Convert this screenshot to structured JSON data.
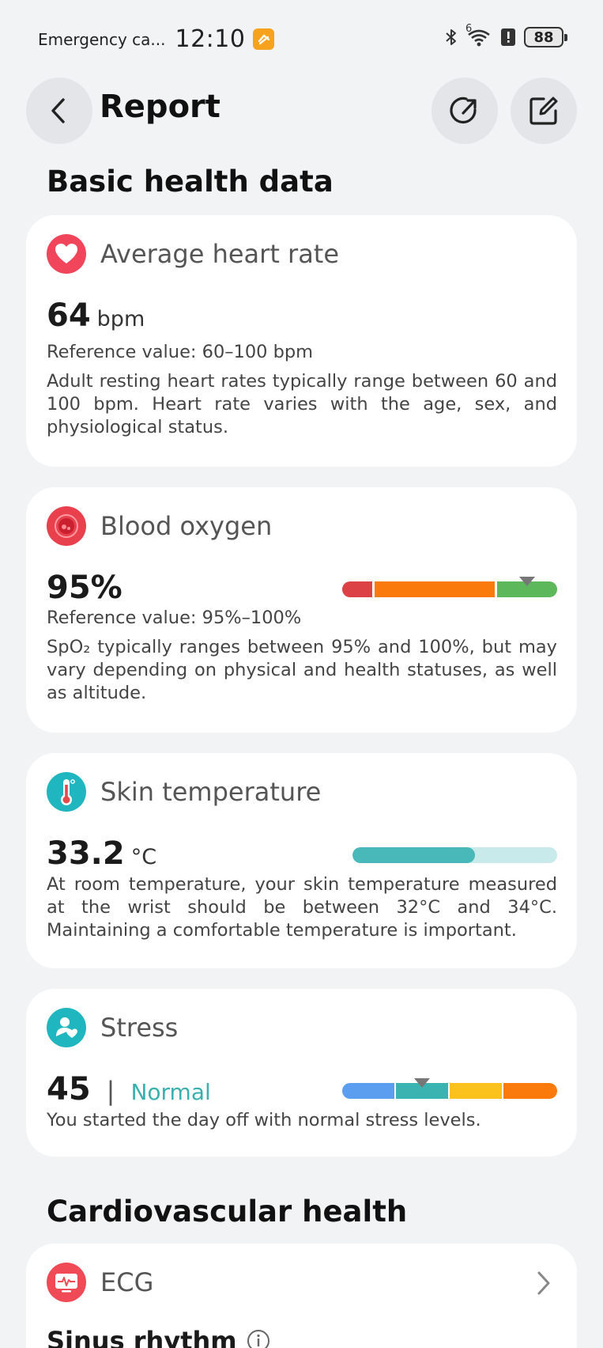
{
  "status_bar": {
    "carrier": "Emergency ca...",
    "time": "12:10",
    "network_label": "6",
    "battery": "88"
  },
  "header": {
    "title": "Report"
  },
  "sections": {
    "basic": "Basic health data",
    "cardio": "Cardiovascular health"
  },
  "heart_rate": {
    "title": "Average heart rate",
    "value": "64",
    "unit": "bpm",
    "reference": "Reference value: 60–100 bpm",
    "description": "Adult resting heart rates typically range between 60 and 100 bpm. Heart rate varies with the age, sex, and physiological status."
  },
  "blood_oxygen": {
    "title": "Blood oxygen",
    "value": "95%",
    "reference": "Reference value: 95%–100%",
    "description": "SpO₂ typically ranges between 95% and 100%, but may vary depending on physical and health statuses, as well as altitude.",
    "gauge_segments": [
      "#dc4245",
      "#fb7a0c",
      "#5cb85a"
    ],
    "marker_fraction": 0.86
  },
  "skin_temp": {
    "title": "Skin temperature",
    "value": "33.2",
    "unit": "°C",
    "description": "At room temperature, your skin temperature measured at the wrist should be between 32°C and 34°C. Maintaining a comfortable temperature is important.",
    "fill_fraction": 0.6,
    "fill_color": "#48b8b8",
    "track_color": "#c9eaea"
  },
  "stress": {
    "title": "Stress",
    "value": "45",
    "separator": "|",
    "status": "Normal",
    "status_color": "#3ab0ae",
    "description": "You started the day off with normal stress levels.",
    "gauge_segments": [
      "#5b9ef0",
      "#3bb3b0",
      "#fbc21e",
      "#fb7a0c"
    ],
    "marker_fraction": 0.37
  },
  "ecg": {
    "title": "ECG",
    "result": "Sinus rhythm"
  }
}
